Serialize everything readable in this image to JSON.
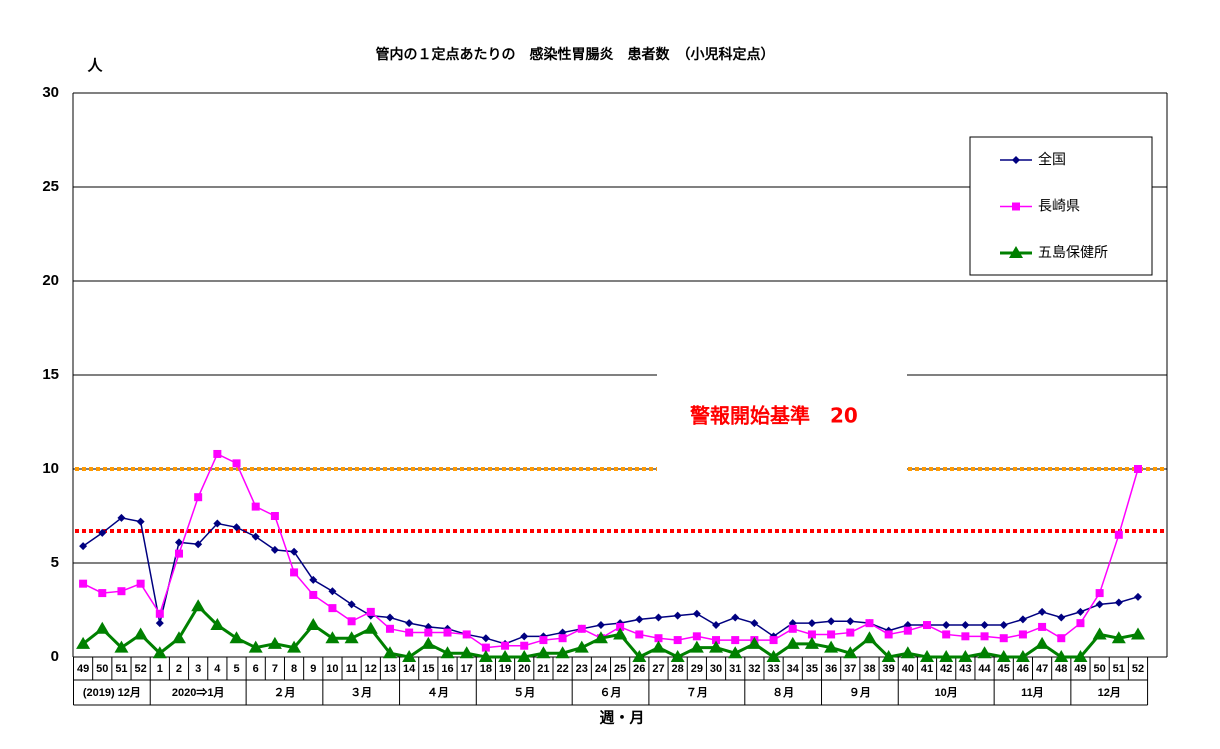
{
  "chart_data": {
    "type": "line",
    "title": "管内の１定点あたりの　感染性胃腸炎　患者数　（小児科定点）",
    "y_label": "人",
    "x_label": "週・月",
    "categories": [
      "49",
      "50",
      "51",
      "52",
      "1",
      "2",
      "3",
      "4",
      "5",
      "6",
      "7",
      "8",
      "9",
      "10",
      "11",
      "12",
      "13",
      "14",
      "15",
      "16",
      "17",
      "18",
      "19",
      "20",
      "21",
      "22",
      "23",
      "24",
      "25",
      "26",
      "27",
      "28",
      "29",
      "30",
      "31",
      "32",
      "33",
      "34",
      "35",
      "36",
      "37",
      "38",
      "39",
      "40",
      "41",
      "42",
      "43",
      "44",
      "45",
      "46",
      "47",
      "48",
      "49",
      "50",
      "51",
      "52"
    ],
    "month_groups": [
      {
        "label": "(2019) 12月",
        "span": 4
      },
      {
        "label": "2020⇒1月",
        "span": 5
      },
      {
        "label": "２月",
        "span": 4
      },
      {
        "label": "３月",
        "span": 4
      },
      {
        "label": "４月",
        "span": 4
      },
      {
        "label": "５月",
        "span": 5
      },
      {
        "label": "６月",
        "span": 4
      },
      {
        "label": "７月",
        "span": 5
      },
      {
        "label": "８月",
        "span": 4
      },
      {
        "label": "９月",
        "span": 4
      },
      {
        "label": "10月",
        "span": 5
      },
      {
        "label": "11月",
        "span": 4
      },
      {
        "label": "12月",
        "span": 4
      }
    ],
    "series": [
      {
        "name": "全国",
        "color": "#000080",
        "marker": "diamond",
        "width": 1.5,
        "values": [
          5.9,
          6.6,
          7.4,
          7.2,
          1.8,
          6.1,
          6.0,
          7.1,
          6.9,
          6.4,
          5.7,
          5.6,
          4.1,
          3.5,
          2.8,
          2.2,
          2.1,
          1.8,
          1.6,
          1.5,
          1.2,
          1.0,
          0.7,
          1.1,
          1.1,
          1.3,
          1.5,
          1.7,
          1.8,
          2.0,
          2.1,
          2.2,
          2.3,
          1.7,
          2.1,
          1.8,
          1.1,
          1.8,
          1.8,
          1.9,
          1.9,
          1.8,
          1.4,
          1.7,
          1.7,
          1.7,
          1.7,
          1.7,
          1.7,
          2.0,
          2.4,
          2.1,
          2.4,
          2.8,
          2.9,
          3.2
        ]
      },
      {
        "name": "長崎県",
        "color": "#ff00ff",
        "marker": "square",
        "width": 1.5,
        "values": [
          3.9,
          3.4,
          3.5,
          3.9,
          2.3,
          5.5,
          8.5,
          10.8,
          10.3,
          8.0,
          7.5,
          4.5,
          3.3,
          2.6,
          1.9,
          2.4,
          1.5,
          1.3,
          1.3,
          1.3,
          1.2,
          0.5,
          0.6,
          0.6,
          0.9,
          1.0,
          1.5,
          1.0,
          1.6,
          1.2,
          1.0,
          0.9,
          1.1,
          0.9,
          0.9,
          0.9,
          0.9,
          1.5,
          1.2,
          1.2,
          1.3,
          1.8,
          1.2,
          1.4,
          1.7,
          1.2,
          1.1,
          1.1,
          1.0,
          1.2,
          1.6,
          1.0,
          1.8,
          3.4,
          6.5,
          10.0
        ]
      },
      {
        "name": "五島保健所",
        "color": "#008000",
        "marker": "triangle",
        "width": 3,
        "values": [
          0.7,
          1.5,
          0.5,
          1.2,
          0.2,
          1.0,
          2.7,
          1.7,
          1.0,
          0.5,
          0.7,
          0.5,
          1.7,
          1.0,
          1.0,
          1.5,
          0.2,
          0.0,
          0.7,
          0.2,
          0.2,
          0.0,
          0.0,
          0.0,
          0.2,
          0.2,
          0.5,
          1.0,
          1.2,
          0.0,
          0.5,
          0.0,
          0.5,
          0.5,
          0.2,
          0.7,
          0.0,
          0.7,
          0.7,
          0.5,
          0.2,
          1.0,
          0.0,
          0.2,
          0.0,
          0.0,
          0.0,
          0.2,
          0.0,
          0.0,
          0.7,
          0.0,
          0.0,
          1.2,
          1.0,
          1.2
        ]
      }
    ],
    "reference_lines": [
      {
        "value": 10,
        "color": "#ff9900"
      },
      {
        "value": 6.7,
        "color": "#ff0000"
      }
    ],
    "annotation": "警報開始基準　20",
    "ylim": [
      0,
      30
    ],
    "yticks": [
      0,
      5,
      10,
      15,
      20,
      25,
      30
    ],
    "grid": true
  }
}
